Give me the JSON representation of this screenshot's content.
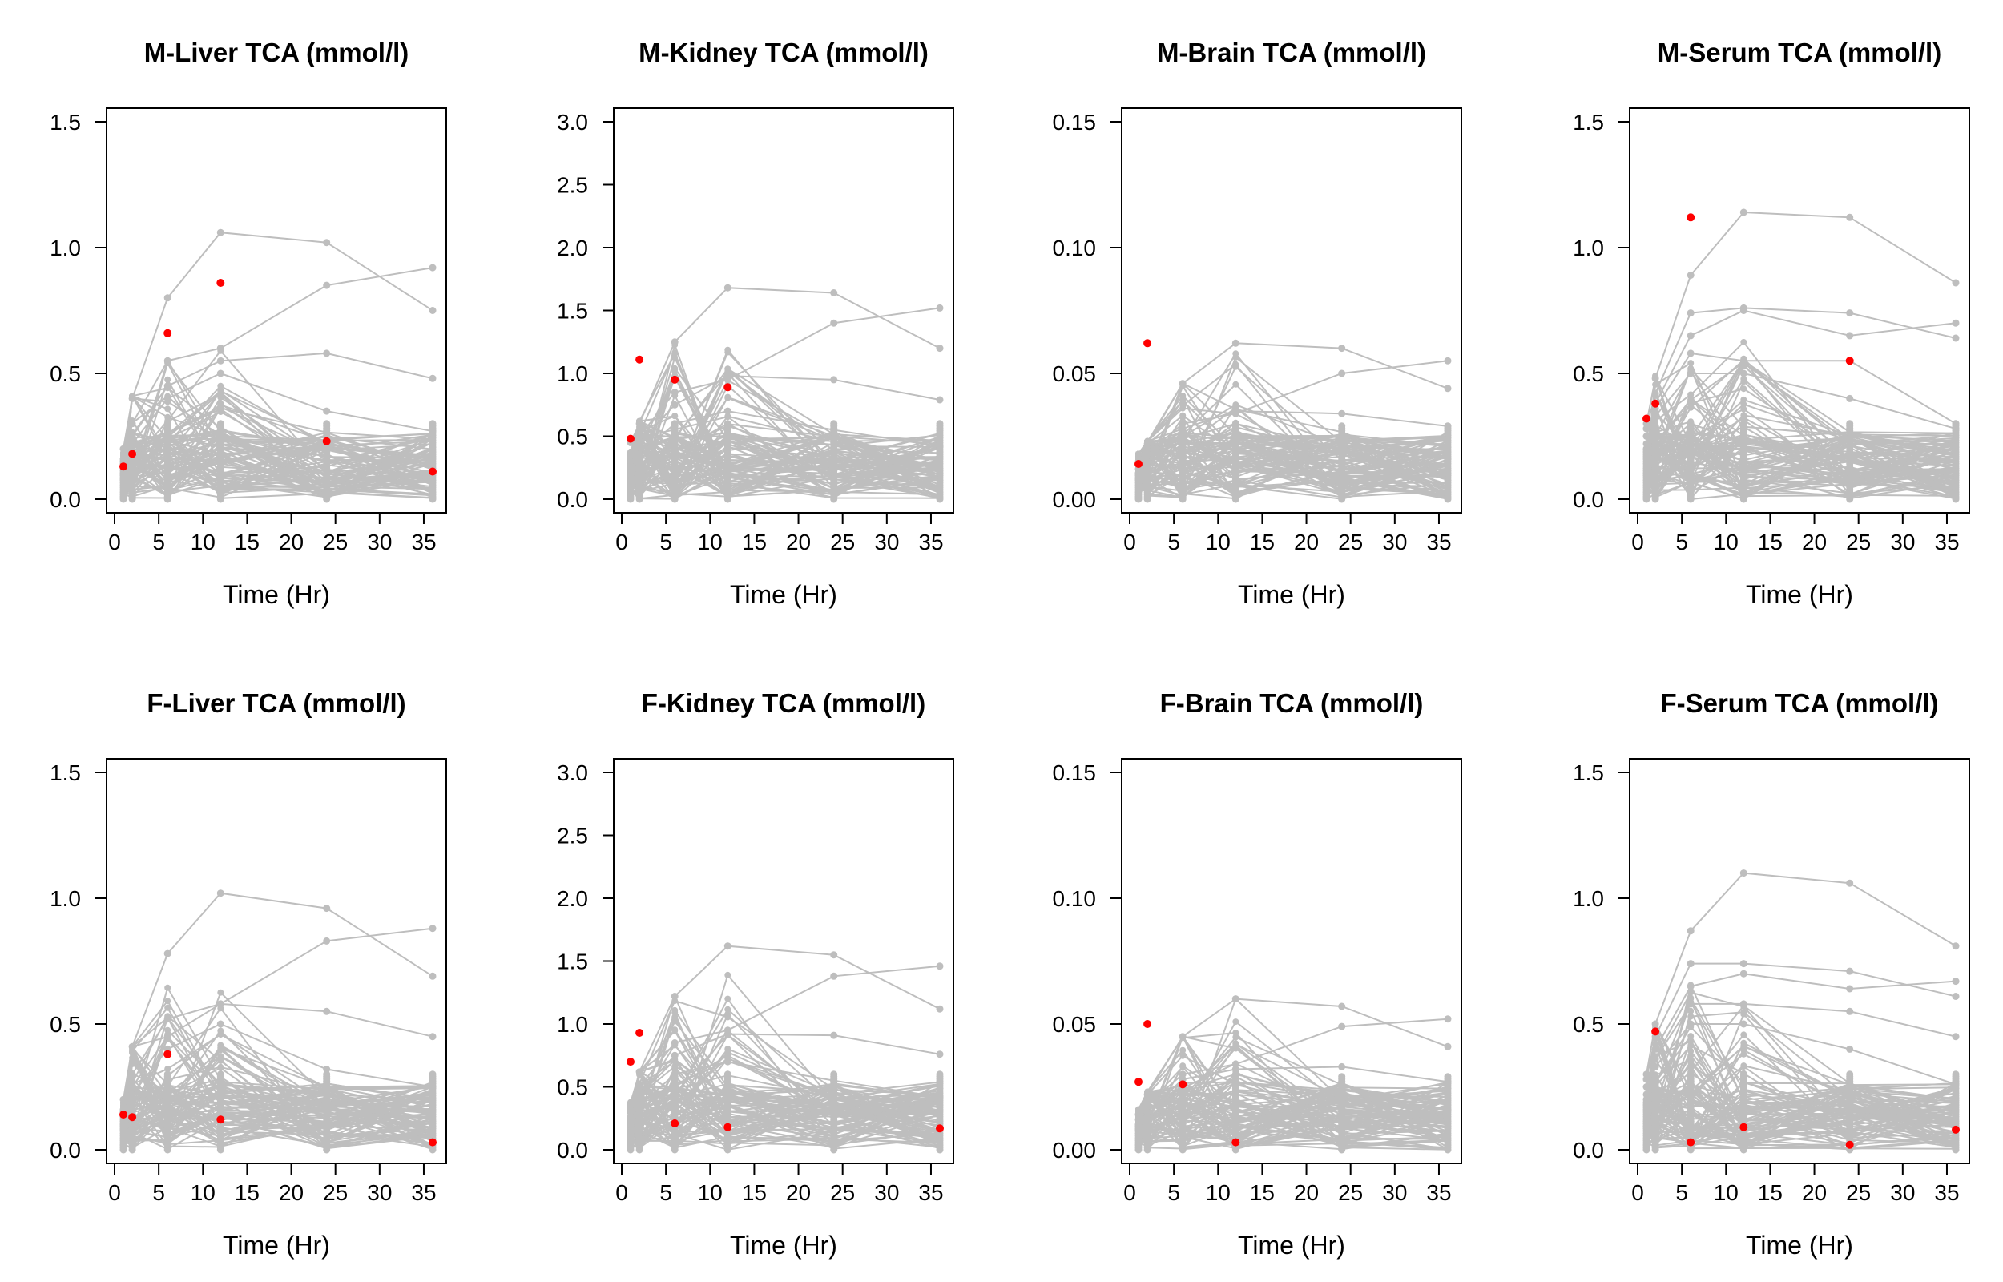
{
  "colors": {
    "background": "#ffffff",
    "trace": "#bebebe",
    "highlight": "#ff0000",
    "axis": "#000000"
  },
  "chart_data": [
    {
      "type": "line",
      "title": "M-Liver TCA (mmol/l)",
      "xlabel": "Time (Hr)",
      "ylabel": "",
      "xlim": [
        0,
        36
      ],
      "ylim": [
        0,
        1.5
      ],
      "x_ticks": [
        "0",
        "5",
        "10",
        "15",
        "20",
        "25",
        "30",
        "35"
      ],
      "y_ticks": [
        "0.0",
        "0.5",
        "1.0",
        "1.5"
      ],
      "times": [
        1,
        2,
        6,
        12,
        24,
        36
      ],
      "point_max": [
        0.27,
        0.41,
        0.8,
        1.06,
        1.02,
        0.92
      ],
      "upper_traces": [
        [
          0.2,
          0.4,
          0.8,
          1.06,
          1.02,
          0.75
        ],
        [
          0.15,
          0.3,
          0.55,
          0.6,
          0.85,
          0.92
        ],
        [
          0.1,
          0.25,
          0.45,
          0.55,
          0.58,
          0.48
        ],
        [
          0.08,
          0.22,
          0.4,
          0.5,
          0.35,
          0.27
        ]
      ],
      "highlight": [
        [
          1,
          0.13
        ],
        [
          2,
          0.18
        ],
        [
          6,
          0.66
        ],
        [
          12,
          0.86
        ],
        [
          24,
          0.23
        ],
        [
          36,
          0.11
        ]
      ]
    },
    {
      "type": "line",
      "title": "M-Kidney TCA (mmol/l)",
      "xlabel": "Time (Hr)",
      "ylabel": "",
      "xlim": [
        0,
        36
      ],
      "ylim": [
        0,
        3.0
      ],
      "x_ticks": [
        "0",
        "5",
        "10",
        "15",
        "20",
        "25",
        "30",
        "35"
      ],
      "y_ticks": [
        "0.0",
        "0.5",
        "1.0",
        "1.5",
        "2.0",
        "2.5",
        "3.0"
      ],
      "times": [
        1,
        2,
        6,
        12,
        24,
        36
      ],
      "point_max": [
        0.5,
        0.62,
        1.25,
        1.68,
        1.64,
        1.52
      ],
      "upper_traces": [
        [
          0.45,
          0.6,
          1.25,
          1.68,
          1.64,
          1.2
        ],
        [
          0.35,
          0.5,
          0.85,
          0.95,
          1.4,
          1.52
        ],
        [
          0.3,
          0.45,
          0.75,
          0.98,
          0.95,
          0.79
        ],
        [
          0.2,
          0.35,
          0.6,
          0.7,
          0.55,
          0.42
        ]
      ],
      "highlight": [
        [
          1,
          0.48
        ],
        [
          2,
          1.11
        ],
        [
          6,
          0.95
        ],
        [
          12,
          0.89
        ]
      ]
    },
    {
      "type": "line",
      "title": "M-Brain TCA (mmol/l)",
      "xlabel": "Time (Hr)",
      "ylabel": "",
      "xlim": [
        0,
        36
      ],
      "ylim": [
        0,
        0.15
      ],
      "x_ticks": [
        "0",
        "5",
        "10",
        "15",
        "20",
        "25",
        "30",
        "35"
      ],
      "y_ticks": [
        "0.00",
        "0.05",
        "0.10",
        "0.15"
      ],
      "times": [
        1,
        2,
        6,
        12,
        24,
        36
      ],
      "point_max": [
        0.018,
        0.023,
        0.046,
        0.062,
        0.06,
        0.055
      ],
      "upper_traces": [
        [
          0.015,
          0.022,
          0.046,
          0.062,
          0.06,
          0.044
        ],
        [
          0.012,
          0.018,
          0.03,
          0.034,
          0.05,
          0.055
        ],
        [
          0.01,
          0.015,
          0.028,
          0.035,
          0.034,
          0.029
        ],
        [
          0.008,
          0.012,
          0.024,
          0.03,
          0.02,
          0.016
        ]
      ],
      "highlight": [
        [
          1,
          0.014
        ],
        [
          2,
          0.062
        ]
      ]
    },
    {
      "type": "line",
      "title": "M-Serum TCA (mmol/l)",
      "xlabel": "Time (Hr)",
      "ylabel": "",
      "xlim": [
        0,
        36
      ],
      "ylim": [
        0,
        1.5
      ],
      "x_ticks": [
        "0",
        "5",
        "10",
        "15",
        "20",
        "25",
        "30",
        "35"
      ],
      "y_ticks": [
        "0.0",
        "0.5",
        "1.0",
        "1.5"
      ],
      "times": [
        1,
        2,
        6,
        12,
        24,
        36
      ],
      "point_max": [
        0.33,
        0.49,
        0.89,
        1.14,
        1.12,
        0.86
      ],
      "upper_traces": [
        [
          0.3,
          0.48,
          0.89,
          1.14,
          1.12,
          0.86
        ],
        [
          0.28,
          0.42,
          0.74,
          0.76,
          0.74,
          0.64
        ],
        [
          0.25,
          0.38,
          0.65,
          0.75,
          0.65,
          0.7
        ],
        [
          0.22,
          0.36,
          0.58,
          0.55,
          0.55,
          0.3
        ],
        [
          0.2,
          0.33,
          0.5,
          0.5,
          0.4,
          0.28
        ]
      ],
      "highlight": [
        [
          1,
          0.32
        ],
        [
          2,
          0.38
        ],
        [
          6,
          1.12
        ],
        [
          24,
          0.55
        ]
      ]
    },
    {
      "type": "line",
      "title": "F-Liver TCA (mmol/l)",
      "xlabel": "Time (Hr)",
      "ylabel": "",
      "xlim": [
        0,
        36
      ],
      "ylim": [
        0,
        1.5
      ],
      "x_ticks": [
        "0",
        "5",
        "10",
        "15",
        "20",
        "25",
        "30",
        "35"
      ],
      "y_ticks": [
        "0.0",
        "0.5",
        "1.0",
        "1.5"
      ],
      "times": [
        1,
        2,
        6,
        12,
        24,
        36
      ],
      "point_max": [
        0.27,
        0.41,
        0.78,
        1.02,
        0.96,
        0.88
      ],
      "upper_traces": [
        [
          0.2,
          0.41,
          0.78,
          1.02,
          0.96,
          0.69
        ],
        [
          0.15,
          0.3,
          0.52,
          0.58,
          0.83,
          0.88
        ],
        [
          0.1,
          0.25,
          0.45,
          0.58,
          0.55,
          0.45
        ],
        [
          0.08,
          0.22,
          0.4,
          0.5,
          0.32,
          0.25
        ]
      ],
      "highlight": [
        [
          1,
          0.14
        ],
        [
          2,
          0.13
        ],
        [
          6,
          0.38
        ],
        [
          12,
          0.12
        ],
        [
          36,
          0.03
        ]
      ]
    },
    {
      "type": "line",
      "title": "F-Kidney TCA (mmol/l)",
      "xlabel": "Time (Hr)",
      "ylabel": "",
      "xlim": [
        0,
        36
      ],
      "ylim": [
        0,
        3.0
      ],
      "x_ticks": [
        "0",
        "5",
        "10",
        "15",
        "20",
        "25",
        "30",
        "35"
      ],
      "y_ticks": [
        "0.0",
        "0.5",
        "1.0",
        "1.5",
        "2.0",
        "2.5",
        "3.0"
      ],
      "times": [
        1,
        2,
        6,
        12,
        24,
        36
      ],
      "point_max": [
        0.4,
        0.62,
        1.22,
        1.62,
        1.55,
        1.46
      ],
      "upper_traces": [
        [
          0.35,
          0.62,
          1.22,
          1.62,
          1.55,
          1.12
        ],
        [
          0.3,
          0.5,
          0.85,
          0.95,
          1.38,
          1.46
        ],
        [
          0.25,
          0.45,
          0.75,
          0.92,
          0.91,
          0.76
        ],
        [
          0.2,
          0.35,
          0.6,
          0.7,
          0.55,
          0.42
        ]
      ],
      "highlight": [
        [
          1,
          0.7
        ],
        [
          2,
          0.93
        ],
        [
          6,
          0.21
        ],
        [
          12,
          0.18
        ],
        [
          36,
          0.17
        ]
      ]
    },
    {
      "type": "line",
      "title": "F-Brain TCA (mmol/l)",
      "xlabel": "Time (Hr)",
      "ylabel": "",
      "xlim": [
        0,
        36
      ],
      "ylim": [
        0,
        0.15
      ],
      "x_ticks": [
        "0",
        "5",
        "10",
        "15",
        "20",
        "25",
        "30",
        "35"
      ],
      "y_ticks": [
        "0.00",
        "0.05",
        "0.10",
        "0.15"
      ],
      "times": [
        1,
        2,
        6,
        12,
        24,
        36
      ],
      "point_max": [
        0.016,
        0.023,
        0.045,
        0.06,
        0.057,
        0.052
      ],
      "upper_traces": [
        [
          0.014,
          0.022,
          0.045,
          0.06,
          0.057,
          0.041
        ],
        [
          0.012,
          0.018,
          0.03,
          0.034,
          0.049,
          0.052
        ],
        [
          0.01,
          0.015,
          0.028,
          0.032,
          0.033,
          0.027
        ],
        [
          0.008,
          0.012,
          0.024,
          0.03,
          0.02,
          0.016
        ]
      ],
      "highlight": [
        [
          1,
          0.027
        ],
        [
          2,
          0.05
        ],
        [
          6,
          0.026
        ],
        [
          12,
          0.003
        ]
      ]
    },
    {
      "type": "line",
      "title": "F-Serum TCA (mmol/l)",
      "xlabel": "Time (Hr)",
      "ylabel": "",
      "xlim": [
        0,
        36
      ],
      "ylim": [
        0,
        1.5
      ],
      "x_ticks": [
        "0",
        "5",
        "10",
        "15",
        "20",
        "25",
        "30",
        "35"
      ],
      "y_ticks": [
        "0.0",
        "0.5",
        "1.0",
        "1.5"
      ],
      "times": [
        1,
        2,
        6,
        12,
        24,
        36
      ],
      "point_max": [
        0.32,
        0.5,
        0.87,
        1.1,
        1.06,
        0.81
      ],
      "upper_traces": [
        [
          0.3,
          0.5,
          0.87,
          1.1,
          1.06,
          0.81
        ],
        [
          0.28,
          0.45,
          0.74,
          0.74,
          0.71,
          0.61
        ],
        [
          0.25,
          0.4,
          0.65,
          0.7,
          0.64,
          0.67
        ],
        [
          0.22,
          0.36,
          0.58,
          0.58,
          0.55,
          0.45
        ],
        [
          0.2,
          0.33,
          0.5,
          0.5,
          0.4,
          0.26
        ]
      ],
      "highlight": [
        [
          2,
          0.47
        ],
        [
          6,
          0.03
        ],
        [
          12,
          0.09
        ],
        [
          24,
          0.02
        ],
        [
          36,
          0.08
        ]
      ]
    }
  ]
}
